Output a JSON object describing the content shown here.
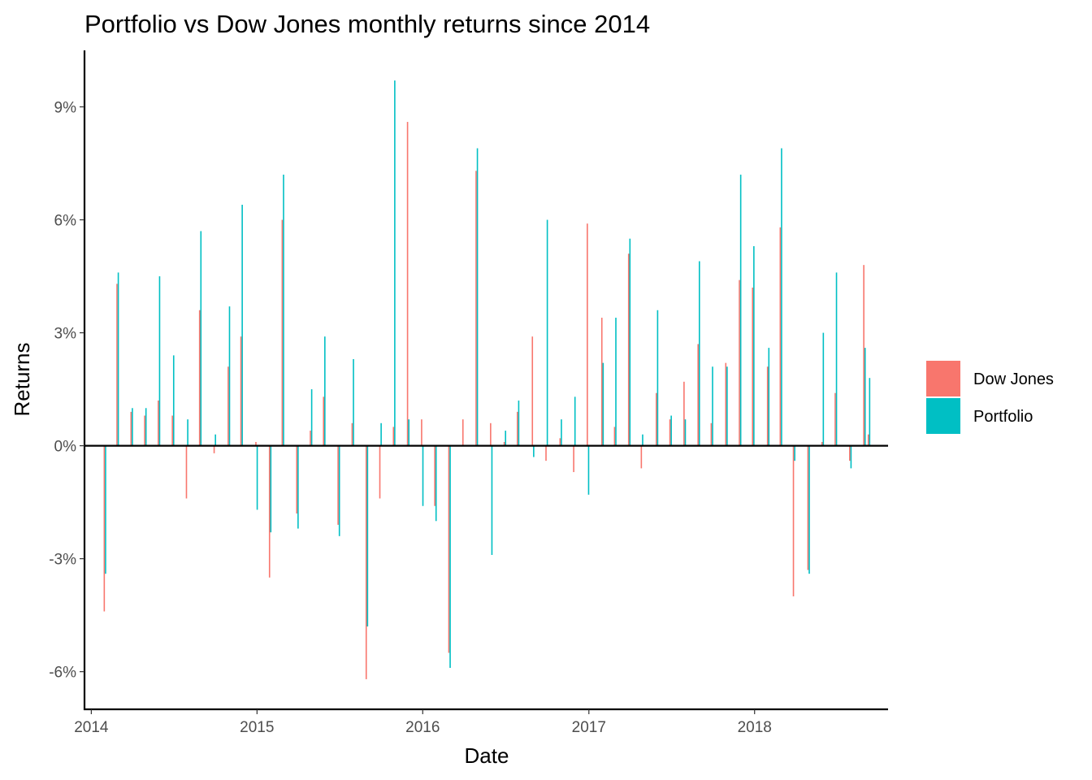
{
  "chart_data": {
    "type": "bar",
    "title": "Portfolio vs Dow Jones monthly returns since 2014",
    "xlabel": "Date",
    "ylabel": "Returns",
    "x_axis_type": "date",
    "xlim": [
      "2013-12-17",
      "2018-10-22"
    ],
    "ylim": [
      -7.0,
      10.5
    ],
    "x_ticks": [
      "2014",
      "2015",
      "2016",
      "2017",
      "2018"
    ],
    "y_ticks": [
      "-6%",
      "-3%",
      "0%",
      "3%",
      "6%",
      "9%"
    ],
    "y_tick_values": [
      -6,
      -3,
      0,
      3,
      6,
      9
    ],
    "grid": false,
    "legend_position": "right",
    "bar_position": "dodge",
    "dates": [
      "2014-01-31",
      "2014-02-28",
      "2014-03-31",
      "2014-04-30",
      "2014-05-30",
      "2014-06-30",
      "2014-07-31",
      "2014-08-29",
      "2014-09-30",
      "2014-10-31",
      "2014-11-28",
      "2014-12-31",
      "2015-01-30",
      "2015-02-27",
      "2015-03-31",
      "2015-04-30",
      "2015-05-29",
      "2015-06-30",
      "2015-07-31",
      "2015-08-31",
      "2015-09-30",
      "2015-10-30",
      "2015-11-30",
      "2015-12-31",
      "2016-01-29",
      "2016-02-29",
      "2016-03-31",
      "2016-04-29",
      "2016-05-31",
      "2016-06-30",
      "2016-07-29",
      "2016-08-31",
      "2016-09-30",
      "2016-10-31",
      "2016-11-30",
      "2016-12-30",
      "2017-01-31",
      "2017-02-28",
      "2017-03-31",
      "2017-04-28",
      "2017-05-31",
      "2017-06-30",
      "2017-07-31",
      "2017-08-31",
      "2017-09-29",
      "2017-10-31",
      "2017-11-30",
      "2017-12-29",
      "2018-01-31",
      "2018-02-28",
      "2018-03-29",
      "2018-04-30",
      "2018-05-31",
      "2018-06-29",
      "2018-07-31"
    ],
    "series": [
      {
        "name": "Dow Jones",
        "color": "#F8766D",
        "values": [
          -4.4,
          4.3,
          0.9,
          0.8,
          1.2,
          0.8,
          -1.4,
          3.6,
          -0.2,
          2.1,
          2.9,
          0.1,
          -3.5,
          6.0,
          -1.8,
          0.4,
          1.3,
          -2.1,
          0.6,
          -6.2,
          -1.4,
          0.5,
          8.6,
          0.7,
          -1.6,
          -5.5,
          0.7,
          7.3,
          0.6,
          0.1,
          0.9,
          2.9,
          -0.4,
          0.2,
          -0.7,
          5.9,
          3.4,
          0.5,
          5.1,
          -0.6,
          1.4,
          0.7,
          1.7,
          2.7,
          0.6,
          2.2,
          4.4,
          4.2,
          2.1,
          5.8,
          -4.0,
          -3.3,
          0.1,
          1.4,
          -0.4
        ]
      },
      {
        "name": "Portfolio",
        "color": "#00BFC4",
        "values": [
          -3.4,
          4.6,
          1.0,
          1.0,
          4.5,
          2.4,
          0.7,
          5.7,
          0.3,
          3.7,
          6.4,
          -1.7,
          -2.3,
          7.2,
          -2.2,
          1.5,
          2.9,
          -2.4,
          2.3,
          -4.8,
          0.6,
          9.7,
          0.7,
          -1.6,
          -2.0,
          -5.9,
          0.0,
          7.9,
          -2.9,
          0.4,
          1.2,
          -0.3,
          6.0,
          0.7,
          1.3,
          -1.3,
          2.2,
          3.4,
          5.5,
          0.3,
          3.6,
          0.8,
          0.7,
          4.9,
          2.1,
          2.1,
          7.2,
          5.3,
          2.6,
          7.9,
          -0.4,
          -3.4,
          3.0,
          4.6,
          -0.6
        ]
      }
    ],
    "extra_bars": [
      {
        "date": "2018-08-31",
        "Dow Jones": 4.8,
        "Portfolio": 2.6
      },
      {
        "date": "2018-09-10",
        "Dow Jones": 0.3,
        "Portfolio": 1.8
      }
    ]
  }
}
